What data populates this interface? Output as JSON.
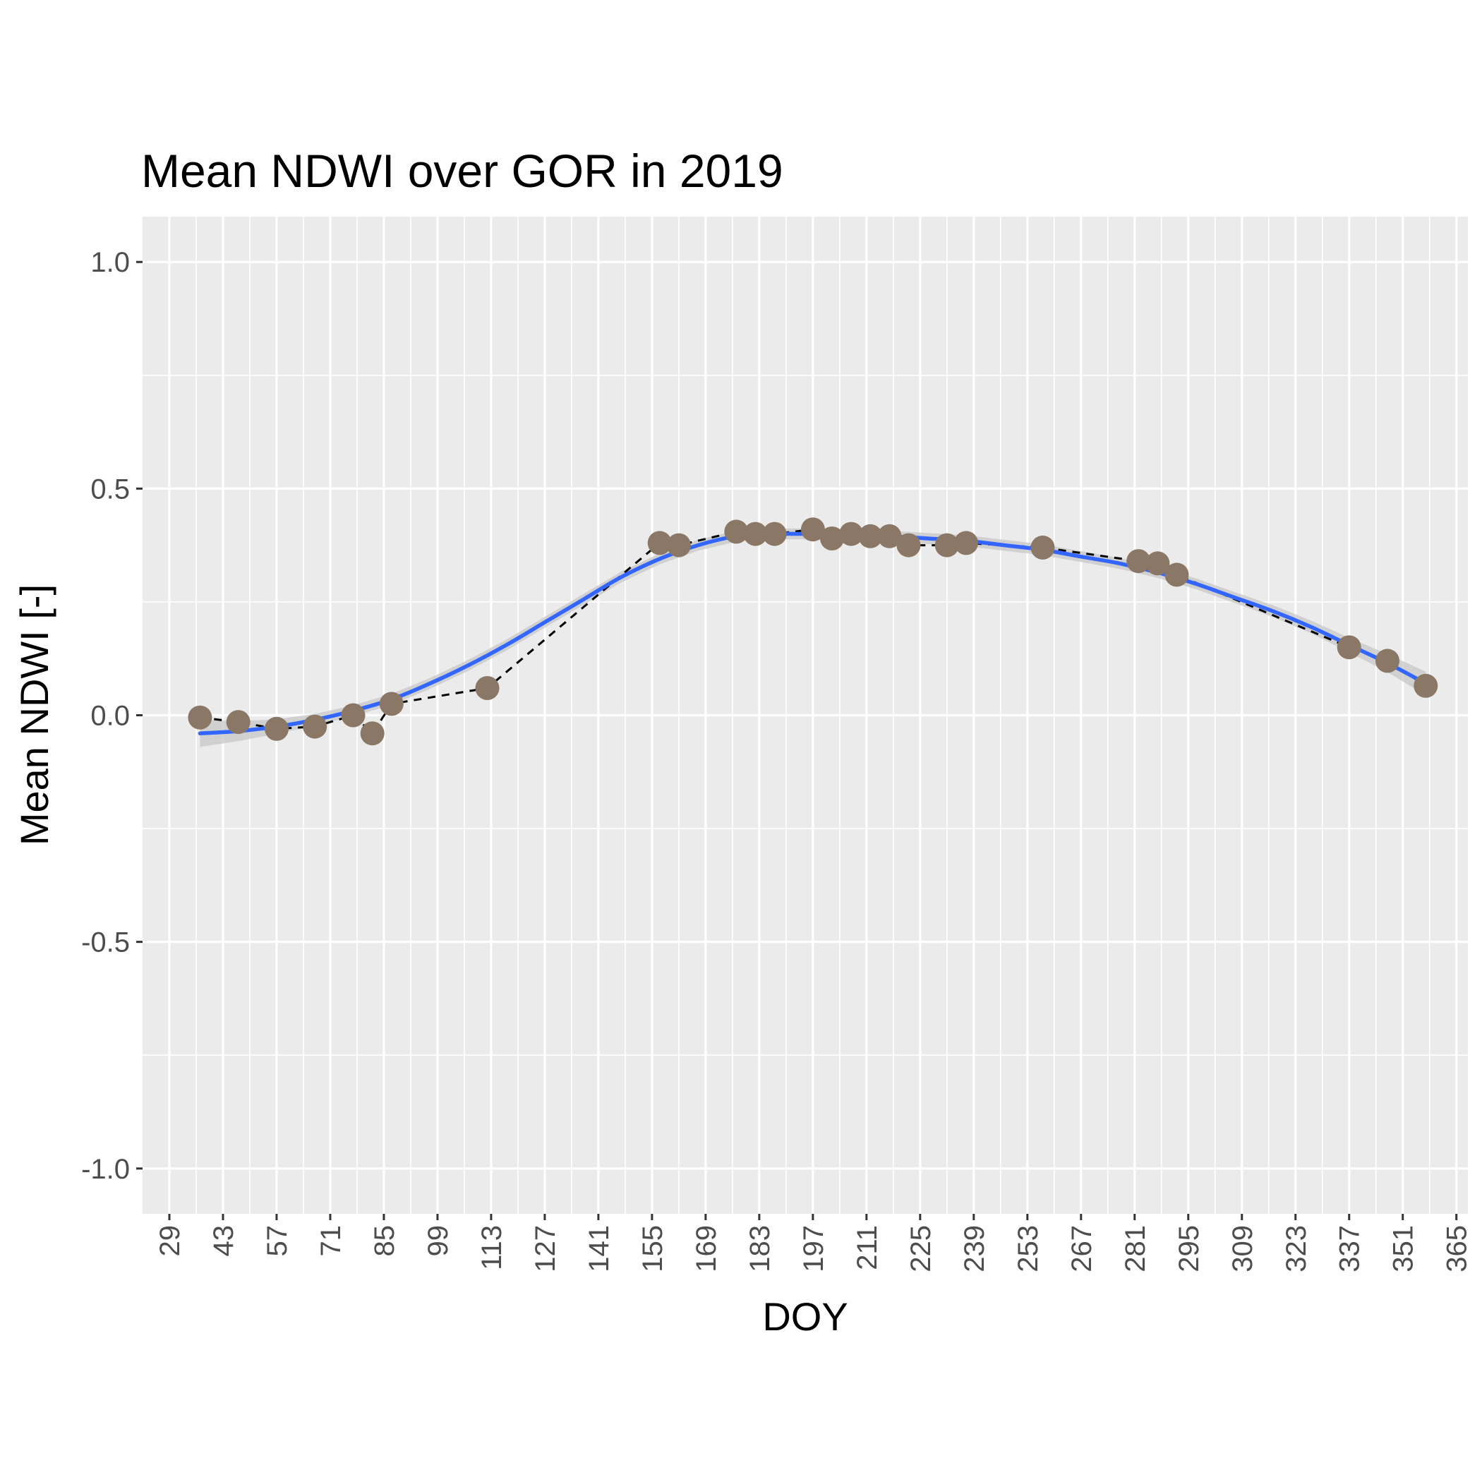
{
  "chart_data": {
    "type": "scatter",
    "title": "Mean NDWI over GOR in 2019",
    "xlabel": "DOY",
    "ylabel": "Mean NDWI [-]",
    "xlim": [
      22,
      368
    ],
    "ylim": [
      -1.1,
      1.1
    ],
    "x_ticks": [
      29,
      43,
      57,
      71,
      85,
      99,
      113,
      127,
      141,
      155,
      169,
      183,
      197,
      211,
      225,
      239,
      253,
      267,
      281,
      295,
      309,
      323,
      337,
      351,
      365
    ],
    "x_tick_labels": [
      "29",
      "43",
      "57",
      "71",
      "85",
      "99",
      "113",
      "127",
      "141",
      "155",
      "169",
      "183",
      "197",
      "211",
      "225",
      "239",
      "253",
      "267",
      "281",
      "295",
      "309",
      "323",
      "337",
      "351",
      "365"
    ],
    "y_ticks": [
      -1.0,
      -0.5,
      0.0,
      0.5,
      1.0
    ],
    "y_tick_labels": [
      "-1.0",
      "-0.5",
      "0.0",
      "0.5",
      "1.0"
    ],
    "grid": true,
    "panel_background": "#ebebeb",
    "colors": {
      "points": "#8b7766",
      "dashed_line": "#000000",
      "smooth_line": "#3366ff",
      "band": "#c7c7c7",
      "grid": "#ffffff"
    },
    "series": [
      {
        "kind": "points-with-dashed-line",
        "x": [
          37,
          47,
          57,
          67,
          77,
          82,
          87,
          112,
          157,
          162,
          177,
          182,
          187,
          197,
          202,
          207,
          212,
          217,
          222,
          232,
          237,
          257,
          282,
          287,
          292,
          337,
          347,
          357
        ],
        "y": [
          -0.005,
          -0.015,
          -0.03,
          -0.025,
          0.0,
          -0.04,
          0.025,
          0.06,
          0.38,
          0.375,
          0.405,
          0.4,
          0.4,
          0.41,
          0.39,
          0.4,
          0.395,
          0.395,
          0.375,
          0.375,
          0.38,
          0.37,
          0.34,
          0.335,
          0.31,
          0.15,
          0.12,
          0.065
        ]
      },
      {
        "kind": "smooth-fit",
        "x": [
          37,
          47,
          57,
          67,
          77,
          87,
          97,
          107,
          117,
          127,
          137,
          147,
          157,
          167,
          177,
          187,
          197,
          207,
          217,
          227,
          237,
          247,
          257,
          267,
          277,
          287,
          297,
          307,
          317,
          327,
          337,
          347,
          357
        ],
        "y": [
          -0.04,
          -0.035,
          -0.025,
          -0.01,
          0.01,
          0.035,
          0.07,
          0.11,
          0.155,
          0.205,
          0.255,
          0.305,
          0.345,
          0.375,
          0.395,
          0.4,
          0.4,
          0.398,
          0.395,
          0.39,
          0.385,
          0.375,
          0.365,
          0.35,
          0.335,
          0.315,
          0.29,
          0.26,
          0.23,
          0.195,
          0.155,
          0.115,
          0.07
        ],
        "se": [
          0.03,
          0.022,
          0.016,
          0.013,
          0.012,
          0.012,
          0.012,
          0.012,
          0.012,
          0.012,
          0.012,
          0.012,
          0.012,
          0.012,
          0.012,
          0.012,
          0.012,
          0.012,
          0.012,
          0.012,
          0.012,
          0.012,
          0.012,
          0.012,
          0.012,
          0.012,
          0.012,
          0.012,
          0.013,
          0.014,
          0.016,
          0.02,
          0.026
        ]
      }
    ]
  }
}
